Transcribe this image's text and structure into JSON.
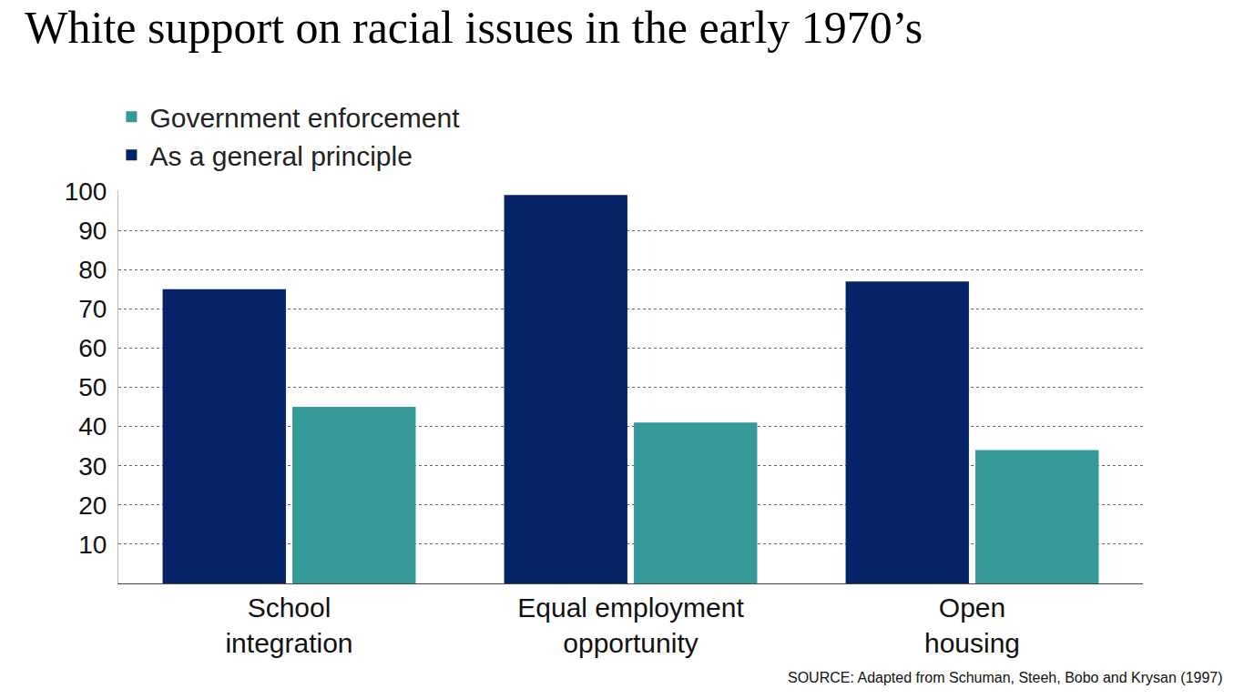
{
  "chart_data": {
    "type": "bar",
    "title": "White support on racial issues in the early 1970’s",
    "categories": [
      "School integration",
      "Equal employment opportunity",
      "Open housing"
    ],
    "series": [
      {
        "name": "As a general principle",
        "color": "#052366",
        "values": [
          75,
          99,
          77
        ]
      },
      {
        "name": "Government enforcement",
        "color": "#359a98",
        "values": [
          45,
          41,
          34
        ]
      }
    ],
    "ylim": [
      0,
      100
    ],
    "yticks": [
      10,
      20,
      30,
      40,
      50,
      60,
      70,
      80,
      90,
      100
    ],
    "grid": true,
    "legend": "top left",
    "annotations": [
      "SOURCE: Adapted from Schuman, Steeh, Bobo and Krysan (1997)"
    ]
  }
}
